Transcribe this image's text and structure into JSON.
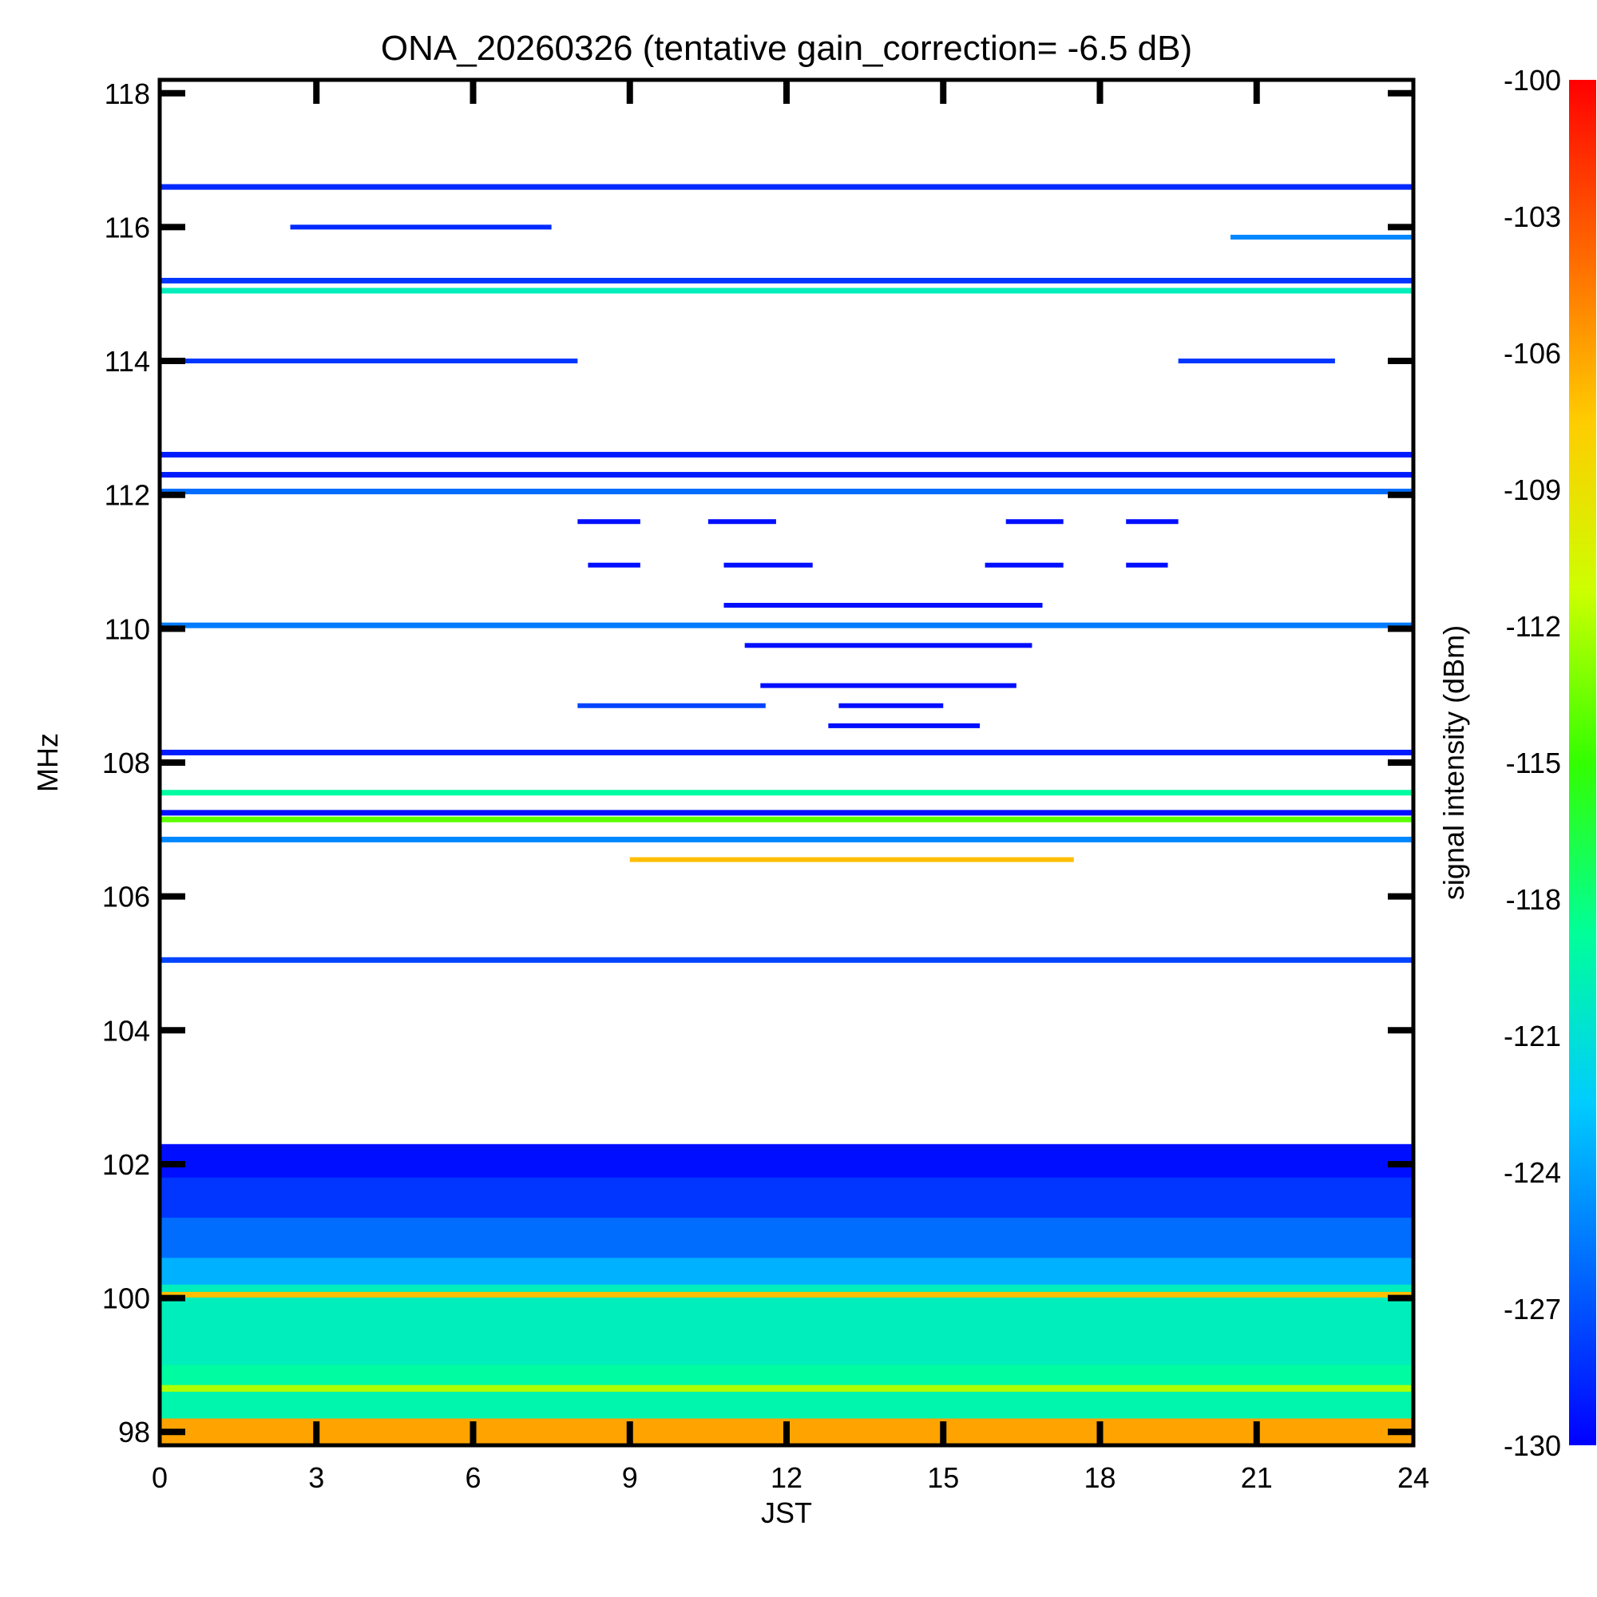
{
  "chart_data": {
    "type": "heatmap",
    "title": "ONA_20260326 (tentative gain_correction= -6.5 dB)",
    "xlabel": "JST",
    "ylabel": "MHz",
    "colorbar_label": "signal intensity (dBm)",
    "x_ticks": [
      "0",
      "3",
      "6",
      "9",
      "12",
      "15",
      "18",
      "21",
      "24"
    ],
    "y_ticks": [
      "98",
      "100",
      "102",
      "104",
      "106",
      "108",
      "110",
      "112",
      "114",
      "116",
      "118"
    ],
    "colorbar_ticks": [
      "-100",
      "-103",
      "-106",
      "-109",
      "-112",
      "-115",
      "-118",
      "-121",
      "-124",
      "-127",
      "-130"
    ],
    "xlim": [
      0,
      24
    ],
    "ylim": [
      97.8,
      118.2
    ],
    "clim": [
      -130,
      -100
    ],
    "colormap": [
      "#0000ff",
      "#0066ff",
      "#00ccff",
      "#00ff99",
      "#33ff00",
      "#ccff00",
      "#ffcc00",
      "#ff6600",
      "#ff0000"
    ],
    "persistent_bands": [
      {
        "freq_mhz": 116.6,
        "dbm": -128.5
      },
      {
        "freq_mhz": 115.2,
        "dbm": -128
      },
      {
        "freq_mhz": 115.05,
        "dbm": -120
      },
      {
        "freq_mhz": 112.6,
        "dbm": -129
      },
      {
        "freq_mhz": 112.3,
        "dbm": -129
      },
      {
        "freq_mhz": 112.05,
        "dbm": -126
      },
      {
        "freq_mhz": 110.05,
        "dbm": -125.5
      },
      {
        "freq_mhz": 108.15,
        "dbm": -129
      },
      {
        "freq_mhz": 107.55,
        "dbm": -119
      },
      {
        "freq_mhz": 107.25,
        "dbm": -129.5
      },
      {
        "freq_mhz": 107.15,
        "dbm": -114
      },
      {
        "freq_mhz": 106.85,
        "dbm": -125
      },
      {
        "freq_mhz": 105.05,
        "dbm": -127.5
      },
      {
        "freq_mhz": 100.05,
        "dbm": -107
      }
    ],
    "partial_bands": [
      {
        "freq_mhz": 116.0,
        "t_start": 2.5,
        "t_end": 7.5,
        "dbm": -128.5
      },
      {
        "freq_mhz": 115.85,
        "t_start": 20.5,
        "t_end": 24,
        "dbm": -125
      },
      {
        "freq_mhz": 114.0,
        "t_start": 0,
        "t_end": 8,
        "dbm": -128
      },
      {
        "freq_mhz": 114.0,
        "t_start": 19.5,
        "t_end": 22.5,
        "dbm": -128
      },
      {
        "freq_mhz": 111.6,
        "t_start": 8.0,
        "t_end": 9.2,
        "dbm": -129.5
      },
      {
        "freq_mhz": 111.6,
        "t_start": 10.5,
        "t_end": 11.8,
        "dbm": -129.5
      },
      {
        "freq_mhz": 111.6,
        "t_start": 16.2,
        "t_end": 17.3,
        "dbm": -129.5
      },
      {
        "freq_mhz": 111.6,
        "t_start": 18.5,
        "t_end": 19.5,
        "dbm": -129.5
      },
      {
        "freq_mhz": 110.95,
        "t_start": 8.2,
        "t_end": 9.2,
        "dbm": -129.5
      },
      {
        "freq_mhz": 110.95,
        "t_start": 10.8,
        "t_end": 12.5,
        "dbm": -129.5
      },
      {
        "freq_mhz": 110.95,
        "t_start": 15.8,
        "t_end": 17.3,
        "dbm": -129.5
      },
      {
        "freq_mhz": 110.95,
        "t_start": 18.5,
        "t_end": 19.3,
        "dbm": -129.5
      },
      {
        "freq_mhz": 110.35,
        "t_start": 10.8,
        "t_end": 16.9,
        "dbm": -129.5
      },
      {
        "freq_mhz": 109.75,
        "t_start": 11.2,
        "t_end": 16.7,
        "dbm": -129.5
      },
      {
        "freq_mhz": 109.15,
        "t_start": 11.5,
        "t_end": 16.4,
        "dbm": -129.5
      },
      {
        "freq_mhz": 108.85,
        "t_start": 8.0,
        "t_end": 11.6,
        "dbm": -127.5
      },
      {
        "freq_mhz": 108.85,
        "t_start": 13.0,
        "t_end": 15.0,
        "dbm": -129.5
      },
      {
        "freq_mhz": 108.55,
        "t_start": 12.8,
        "t_end": 15.7,
        "dbm": -129.5
      },
      {
        "freq_mhz": 106.55,
        "t_start": 9.0,
        "t_end": 17.5,
        "dbm": -107
      }
    ],
    "noise_floor": [
      {
        "freq_from": 102.3,
        "freq_to": 101.8,
        "dbm": -129.5
      },
      {
        "freq_from": 101.8,
        "freq_to": 101.2,
        "dbm": -128
      },
      {
        "freq_from": 101.2,
        "freq_to": 100.6,
        "dbm": -126
      },
      {
        "freq_from": 100.6,
        "freq_to": 100.2,
        "dbm": -123.5
      },
      {
        "freq_from": 100.2,
        "freq_to": 99.0,
        "dbm": -120
      },
      {
        "freq_from": 99.0,
        "freq_to": 98.7,
        "dbm": -119
      },
      {
        "freq_from": 98.7,
        "freq_to": 98.6,
        "dbm": -112
      },
      {
        "freq_from": 98.6,
        "freq_to": 98.2,
        "dbm": -119.5
      },
      {
        "freq_from": 98.2,
        "freq_to": 97.8,
        "dbm": -106
      }
    ]
  }
}
